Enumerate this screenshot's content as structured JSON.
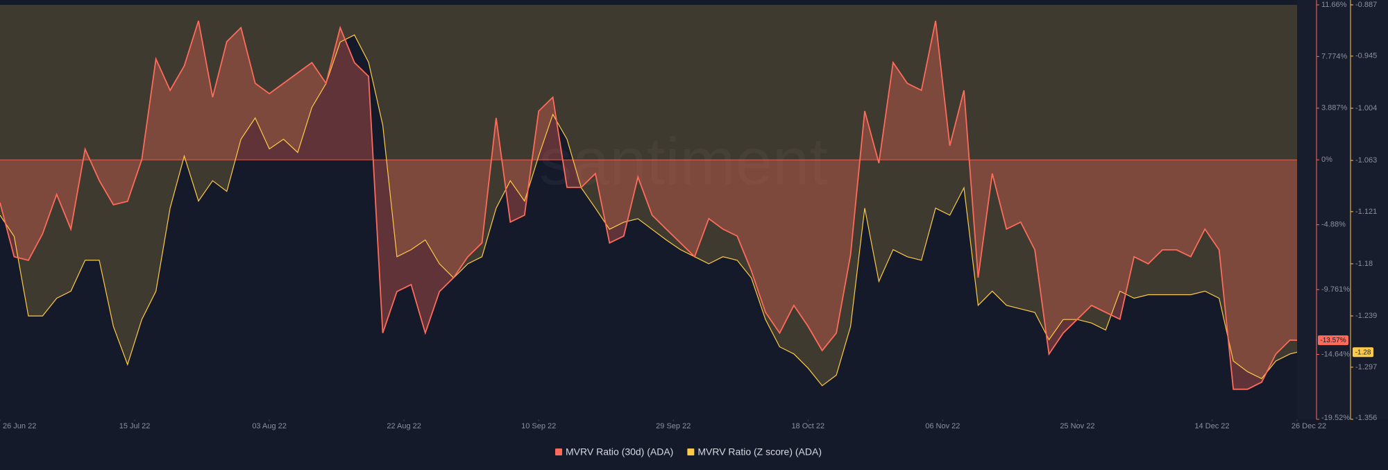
{
  "chart_data": {
    "type": "area",
    "watermark": "santiment",
    "x": [
      "2022-06-26",
      "2022-06-28",
      "2022-06-30",
      "2022-07-02",
      "2022-07-04",
      "2022-07-06",
      "2022-07-08",
      "2022-07-10",
      "2022-07-12",
      "2022-07-14",
      "2022-07-16",
      "2022-07-18",
      "2022-07-20",
      "2022-07-22",
      "2022-07-24",
      "2022-07-26",
      "2022-07-28",
      "2022-07-30",
      "2022-08-01",
      "2022-08-03",
      "2022-08-05",
      "2022-08-07",
      "2022-08-09",
      "2022-08-11",
      "2022-08-13",
      "2022-08-15",
      "2022-08-17",
      "2022-08-19",
      "2022-08-21",
      "2022-08-23",
      "2022-08-25",
      "2022-08-27",
      "2022-08-29",
      "2022-08-31",
      "2022-09-02",
      "2022-09-04",
      "2022-09-06",
      "2022-09-08",
      "2022-09-10",
      "2022-09-12",
      "2022-09-14",
      "2022-09-16",
      "2022-09-18",
      "2022-09-20",
      "2022-09-22",
      "2022-09-24",
      "2022-09-26",
      "2022-09-28",
      "2022-09-30",
      "2022-10-02",
      "2022-10-04",
      "2022-10-06",
      "2022-10-08",
      "2022-10-10",
      "2022-10-12",
      "2022-10-14",
      "2022-10-16",
      "2022-10-18",
      "2022-10-20",
      "2022-10-22",
      "2022-10-24",
      "2022-10-26",
      "2022-10-28",
      "2022-10-30",
      "2022-11-01",
      "2022-11-03",
      "2022-11-05",
      "2022-11-07",
      "2022-11-09",
      "2022-11-11",
      "2022-11-13",
      "2022-11-15",
      "2022-11-17",
      "2022-11-19",
      "2022-11-21",
      "2022-11-23",
      "2022-11-25",
      "2022-11-27",
      "2022-11-29",
      "2022-12-01",
      "2022-12-03",
      "2022-12-05",
      "2022-12-07",
      "2022-12-09",
      "2022-12-11",
      "2022-12-13",
      "2022-12-15",
      "2022-12-17",
      "2022-12-19",
      "2022-12-21",
      "2022-12-23",
      "2022-12-25",
      "2022-12-26"
    ],
    "xlim": [
      "2022-06-26",
      "2022-12-26"
    ],
    "xticks": [
      {
        "value": "2022-06-26",
        "label": "26 Jun 22"
      },
      {
        "value": "2022-07-15",
        "label": "15 Jul 22"
      },
      {
        "value": "2022-08-03",
        "label": "03 Aug 22"
      },
      {
        "value": "2022-08-22",
        "label": "22 Aug 22"
      },
      {
        "value": "2022-09-10",
        "label": "10 Sep 22"
      },
      {
        "value": "2022-09-29",
        "label": "29 Sep 22"
      },
      {
        "value": "2022-10-18",
        "label": "18 Oct 22"
      },
      {
        "value": "2022-11-06",
        "label": "06 Nov 22"
      },
      {
        "value": "2022-11-25",
        "label": "25 Nov 22"
      },
      {
        "value": "2022-12-14",
        "label": "14 Dec 22"
      },
      {
        "value": "2022-12-26",
        "label": "26 Dec 22"
      }
    ],
    "ylim": [
      -19.52,
      11.66
    ],
    "yticks": [
      {
        "value": 11.66,
        "label": "11.66%"
      },
      {
        "value": 7.774,
        "label": "7.774%"
      },
      {
        "value": 3.887,
        "label": "3.887%"
      },
      {
        "value": 0,
        "label": "0%"
      },
      {
        "value": -4.88,
        "label": "-4.88%"
      },
      {
        "value": -9.761,
        "label": "-9.761%"
      },
      {
        "value": -14.64,
        "label": "-14.64%"
      },
      {
        "value": -19.52,
        "label": "-19.52%"
      }
    ],
    "y2lim": [
      -1.356,
      -0.887
    ],
    "y2ticks": [
      -0.887,
      -0.945,
      -1.004,
      -1.063,
      -1.121,
      -1.18,
      -1.239,
      -1.297,
      -1.356
    ],
    "zero_line": true,
    "series": [
      {
        "name": "MVRV Ratio (30d) (ADA)",
        "color": "#ff6b5b",
        "last_label": "-13.57%",
        "values": [
          -3.22,
          -7.29,
          -7.56,
          -5.57,
          -2.6,
          -5.21,
          0.8,
          -1.55,
          -3.38,
          -3.12,
          0.02,
          7.59,
          5.23,
          7.07,
          10.46,
          4.71,
          8.89,
          9.94,
          5.76,
          4.98,
          5.76,
          6.54,
          7.32,
          5.76,
          9.94,
          7.32,
          6.28,
          -13.03,
          -9.91,
          -9.38,
          -13.03,
          -9.91,
          -8.86,
          -7.29,
          -6.25,
          3.15,
          -4.68,
          -4.16,
          3.67,
          4.71,
          -2.07,
          -2.07,
          -1.03,
          -6.25,
          -5.73,
          -1.29,
          -4.16,
          -5.21,
          -6.25,
          -7.29,
          -4.42,
          -5.21,
          -5.73,
          -8.34,
          -11.47,
          -13.03,
          -10.95,
          -12.52,
          -14.35,
          -13.03,
          -7.14,
          3.67,
          -0.25,
          7.32,
          5.76,
          5.23,
          10.46,
          1.06,
          5.23,
          -8.86,
          -1.03,
          -5.21,
          -4.68,
          -6.77,
          -14.61,
          -13.03,
          -11.99,
          -10.95,
          -11.47,
          -11.99,
          -7.29,
          -7.82,
          -6.77,
          -6.77,
          -7.29,
          -5.21,
          -6.77,
          -17.26,
          -17.26,
          -16.73,
          -14.61,
          -13.56,
          -13.57
        ]
      },
      {
        "name": "MVRV Ratio (Z score) (ADA)",
        "color": "#ffcb47",
        "axis": "y2",
        "last_label": "-1.28",
        "values": [
          -1.125,
          -1.149,
          -1.239,
          -1.239,
          -1.219,
          -1.211,
          -1.176,
          -1.176,
          -1.251,
          -1.294,
          -1.243,
          -1.211,
          -1.117,
          -1.058,
          -1.109,
          -1.086,
          -1.098,
          -1.039,
          -1.015,
          -1.05,
          -1.039,
          -1.054,
          -1.003,
          -0.976,
          -0.929,
          -0.921,
          -0.952,
          -1.023,
          -1.172,
          -1.164,
          -1.153,
          -1.18,
          -1.196,
          -1.18,
          -1.172,
          -1.117,
          -1.086,
          -1.109,
          -1.058,
          -1.011,
          -1.039,
          -1.094,
          -1.117,
          -1.141,
          -1.133,
          -1.129,
          -1.141,
          -1.153,
          -1.164,
          -1.172,
          -1.18,
          -1.172,
          -1.176,
          -1.196,
          -1.243,
          -1.274,
          -1.282,
          -1.298,
          -1.318,
          -1.306,
          -1.251,
          -1.117,
          -1.2,
          -1.164,
          -1.172,
          -1.176,
          -1.117,
          -1.125,
          -1.094,
          -1.227,
          -1.211,
          -1.227,
          -1.231,
          -1.235,
          -1.266,
          -1.243,
          -1.243,
          -1.247,
          -1.255,
          -1.211,
          -1.219,
          -1.215,
          -1.215,
          -1.215,
          -1.215,
          -1.211,
          -1.219,
          -1.29,
          -1.302,
          -1.31,
          -1.29,
          -1.282,
          -1.28
        ]
      }
    ]
  }
}
